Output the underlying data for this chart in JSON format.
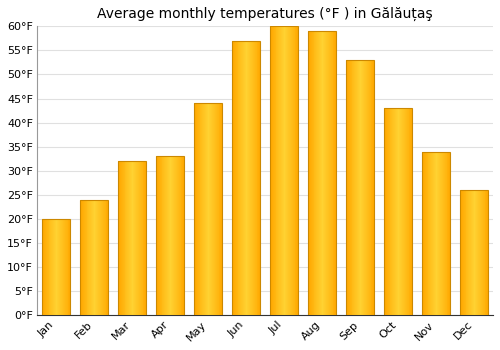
{
  "title": "Average monthly temperatures (°F ) in Gălăuțaş",
  "months": [
    "Jan",
    "Feb",
    "Mar",
    "Apr",
    "May",
    "Jun",
    "Jul",
    "Aug",
    "Sep",
    "Oct",
    "Nov",
    "Dec"
  ],
  "values": [
    20,
    24,
    32,
    33,
    44,
    57,
    60,
    59,
    53,
    43,
    34,
    26
  ],
  "ylim": [
    0,
    60
  ],
  "yticks": [
    0,
    5,
    10,
    15,
    20,
    25,
    30,
    35,
    40,
    45,
    50,
    55,
    60
  ],
  "ytick_labels": [
    "0°F",
    "5°F",
    "10°F",
    "15°F",
    "20°F",
    "25°F",
    "30°F",
    "35°F",
    "40°F",
    "45°F",
    "50°F",
    "55°F",
    "60°F"
  ],
  "background_color": "#ffffff",
  "grid_color": "#e0e0e0",
  "title_fontsize": 10,
  "tick_fontsize": 8,
  "bar_color_left": "#F5A800",
  "bar_color_center": "#FFD966",
  "bar_color_right": "#F5A800",
  "bar_edge_color": "#CC8800",
  "bar_width": 0.75,
  "figsize": [
    5.0,
    3.5
  ],
  "dpi": 100
}
